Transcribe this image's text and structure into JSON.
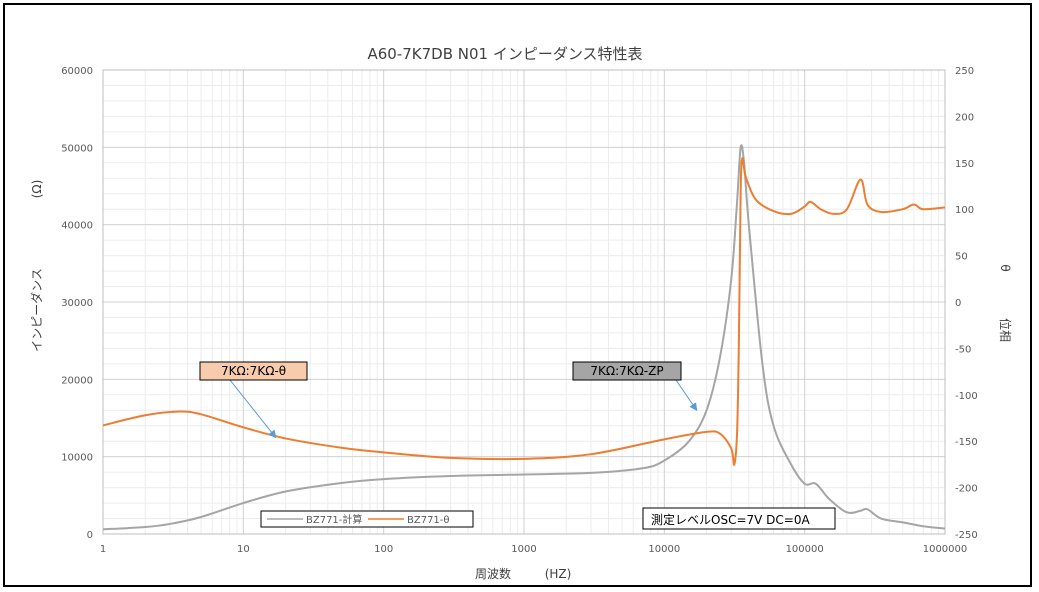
{
  "chart_data": {
    "type": "line",
    "title": "A60-7K7DB N01 インピーダンス特性表",
    "xlabel": "周波数",
    "xlabel_unit": "(HZ)",
    "ylabel": "インピーダンス",
    "ylabel_unit": "(Ω)",
    "y2label": "位相",
    "y2label_unit": "θ",
    "xscale": "log",
    "xlim": [
      1,
      1000000
    ],
    "ylim": [
      0,
      60000
    ],
    "y2lim": [
      -250,
      250
    ],
    "grid": true,
    "x_ticks": [
      "1",
      "10",
      "100",
      "1000",
      "10000",
      "100000",
      "1000000"
    ],
    "y_ticks": [
      "0",
      "10000",
      "20000",
      "30000",
      "40000",
      "50000",
      "60000"
    ],
    "y2_ticks": [
      "-250",
      "-200",
      "-150",
      "-100",
      "-50",
      "0",
      "50",
      "100",
      "150",
      "200",
      "250"
    ],
    "legend_position": "bottom-left",
    "series": [
      {
        "name": "BZ771-計算",
        "axis": "left",
        "color": "#a5a5a5",
        "points": [
          [
            1,
            600
          ],
          [
            2,
            900
          ],
          [
            3,
            1300
          ],
          [
            5,
            2200
          ],
          [
            10,
            4000
          ],
          [
            20,
            5500
          ],
          [
            50,
            6600
          ],
          [
            100,
            7100
          ],
          [
            300,
            7500
          ],
          [
            1000,
            7700
          ],
          [
            3000,
            7900
          ],
          [
            7000,
            8500
          ],
          [
            10000,
            9500
          ],
          [
            15000,
            12000
          ],
          [
            20000,
            16000
          ],
          [
            25000,
            23000
          ],
          [
            30000,
            33000
          ],
          [
            33000,
            43000
          ],
          [
            35000,
            50000
          ],
          [
            37000,
            48000
          ],
          [
            40000,
            40000
          ],
          [
            50000,
            22000
          ],
          [
            60000,
            14000
          ],
          [
            80000,
            9000
          ],
          [
            100000,
            6500
          ],
          [
            120000,
            6500
          ],
          [
            150000,
            4500
          ],
          [
            200000,
            2800
          ],
          [
            250000,
            3000
          ],
          [
            280000,
            3200
          ],
          [
            350000,
            2000
          ],
          [
            500000,
            1500
          ],
          [
            700000,
            1000
          ],
          [
            1000000,
            700
          ]
        ]
      },
      {
        "name": "BZ771-θ",
        "axis": "right",
        "color": "#ed7d31",
        "points": [
          [
            1,
            -133
          ],
          [
            2,
            -122
          ],
          [
            3.5,
            -118
          ],
          [
            5,
            -121
          ],
          [
            10,
            -135
          ],
          [
            20,
            -147
          ],
          [
            50,
            -157
          ],
          [
            100,
            -162
          ],
          [
            300,
            -168
          ],
          [
            1000,
            -169
          ],
          [
            3000,
            -164
          ],
          [
            10000,
            -148
          ],
          [
            20000,
            -140
          ],
          [
            25000,
            -142
          ],
          [
            30000,
            -158
          ],
          [
            31500,
            -175
          ],
          [
            33000,
            -140
          ],
          [
            34000,
            -40
          ],
          [
            35000,
            120
          ],
          [
            36000,
            155
          ],
          [
            38000,
            135
          ],
          [
            45000,
            110
          ],
          [
            60000,
            98
          ],
          [
            80000,
            95
          ],
          [
            100000,
            103
          ],
          [
            110000,
            108
          ],
          [
            130000,
            100
          ],
          [
            160000,
            95
          ],
          [
            200000,
            100
          ],
          [
            250000,
            132
          ],
          [
            280000,
            105
          ],
          [
            350000,
            97
          ],
          [
            500000,
            100
          ],
          [
            600000,
            105
          ],
          [
            700000,
            100
          ],
          [
            1000000,
            102
          ]
        ]
      }
    ],
    "callouts": [
      {
        "label": "7KΩ:7KΩ-θ",
        "target_series": "BZ771-θ",
        "target_point": [
          17,
          -146
        ],
        "fill": "#f8cbad"
      },
      {
        "label": "7KΩ:7KΩ-ZP",
        "target_series": "BZ771-計算",
        "target_point": [
          17000,
          16000
        ],
        "fill": "#a5a5a5"
      }
    ],
    "annotation": "測定レベルOSC=7V DC=0A"
  }
}
